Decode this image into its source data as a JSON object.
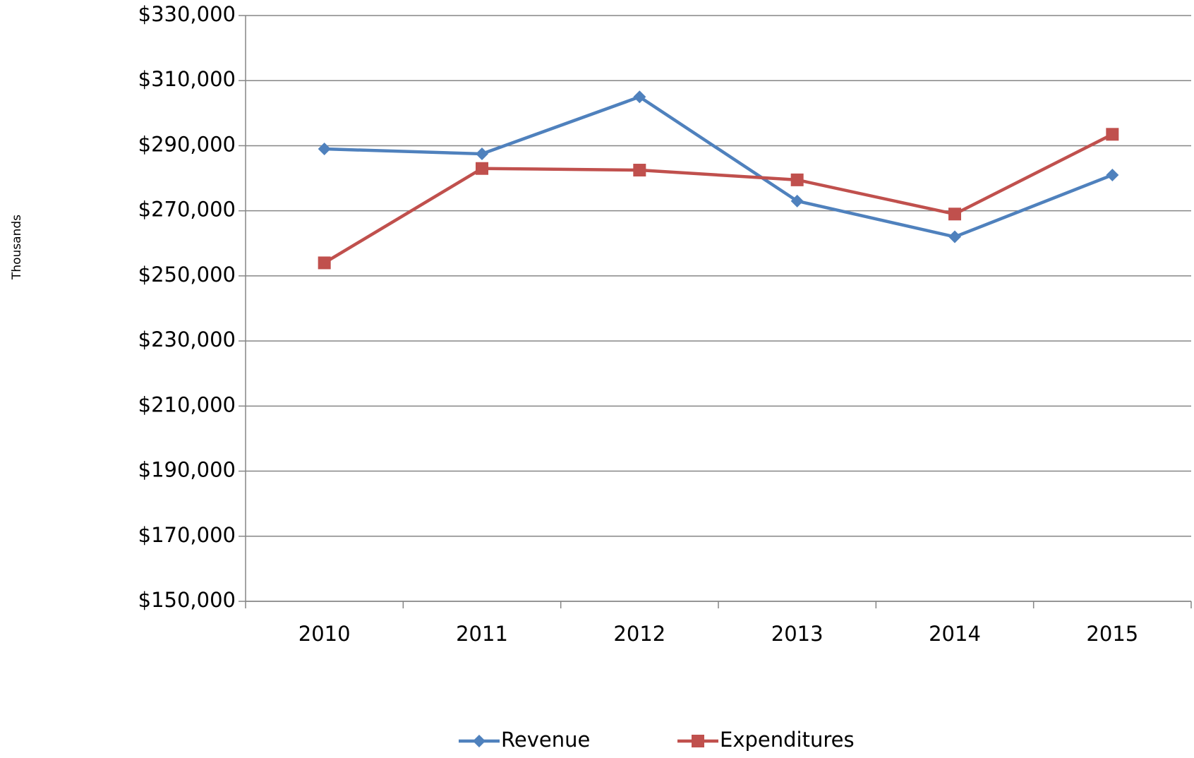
{
  "chart_data": {
    "type": "line",
    "y_axis_label": "Thousands",
    "categories": [
      "2010",
      "2011",
      "2012",
      "2013",
      "2014",
      "2015"
    ],
    "series": [
      {
        "name": "Revenue",
        "color": "#4f81bd",
        "marker": "diamond",
        "values": [
          289000,
          287500,
          305000,
          273000,
          262000,
          281000
        ]
      },
      {
        "name": "Expenditures",
        "color": "#c0504d",
        "marker": "square",
        "values": [
          254000,
          283000,
          282500,
          279500,
          269000,
          293500
        ]
      }
    ],
    "ylim": [
      150000,
      330000
    ],
    "yticks": [
      {
        "value": 150000,
        "label": "$150,000"
      },
      {
        "value": 170000,
        "label": "$170,000"
      },
      {
        "value": 190000,
        "label": "$190,000"
      },
      {
        "value": 210000,
        "label": "$210,000"
      },
      {
        "value": 230000,
        "label": "$230,000"
      },
      {
        "value": 250000,
        "label": "$250,000"
      },
      {
        "value": 270000,
        "label": "$270,000"
      },
      {
        "value": 290000,
        "label": "$290,000"
      },
      {
        "value": 310000,
        "label": "$310,000"
      },
      {
        "value": 330000,
        "label": "$330,000"
      }
    ],
    "grid": true,
    "legend": "bottom"
  }
}
